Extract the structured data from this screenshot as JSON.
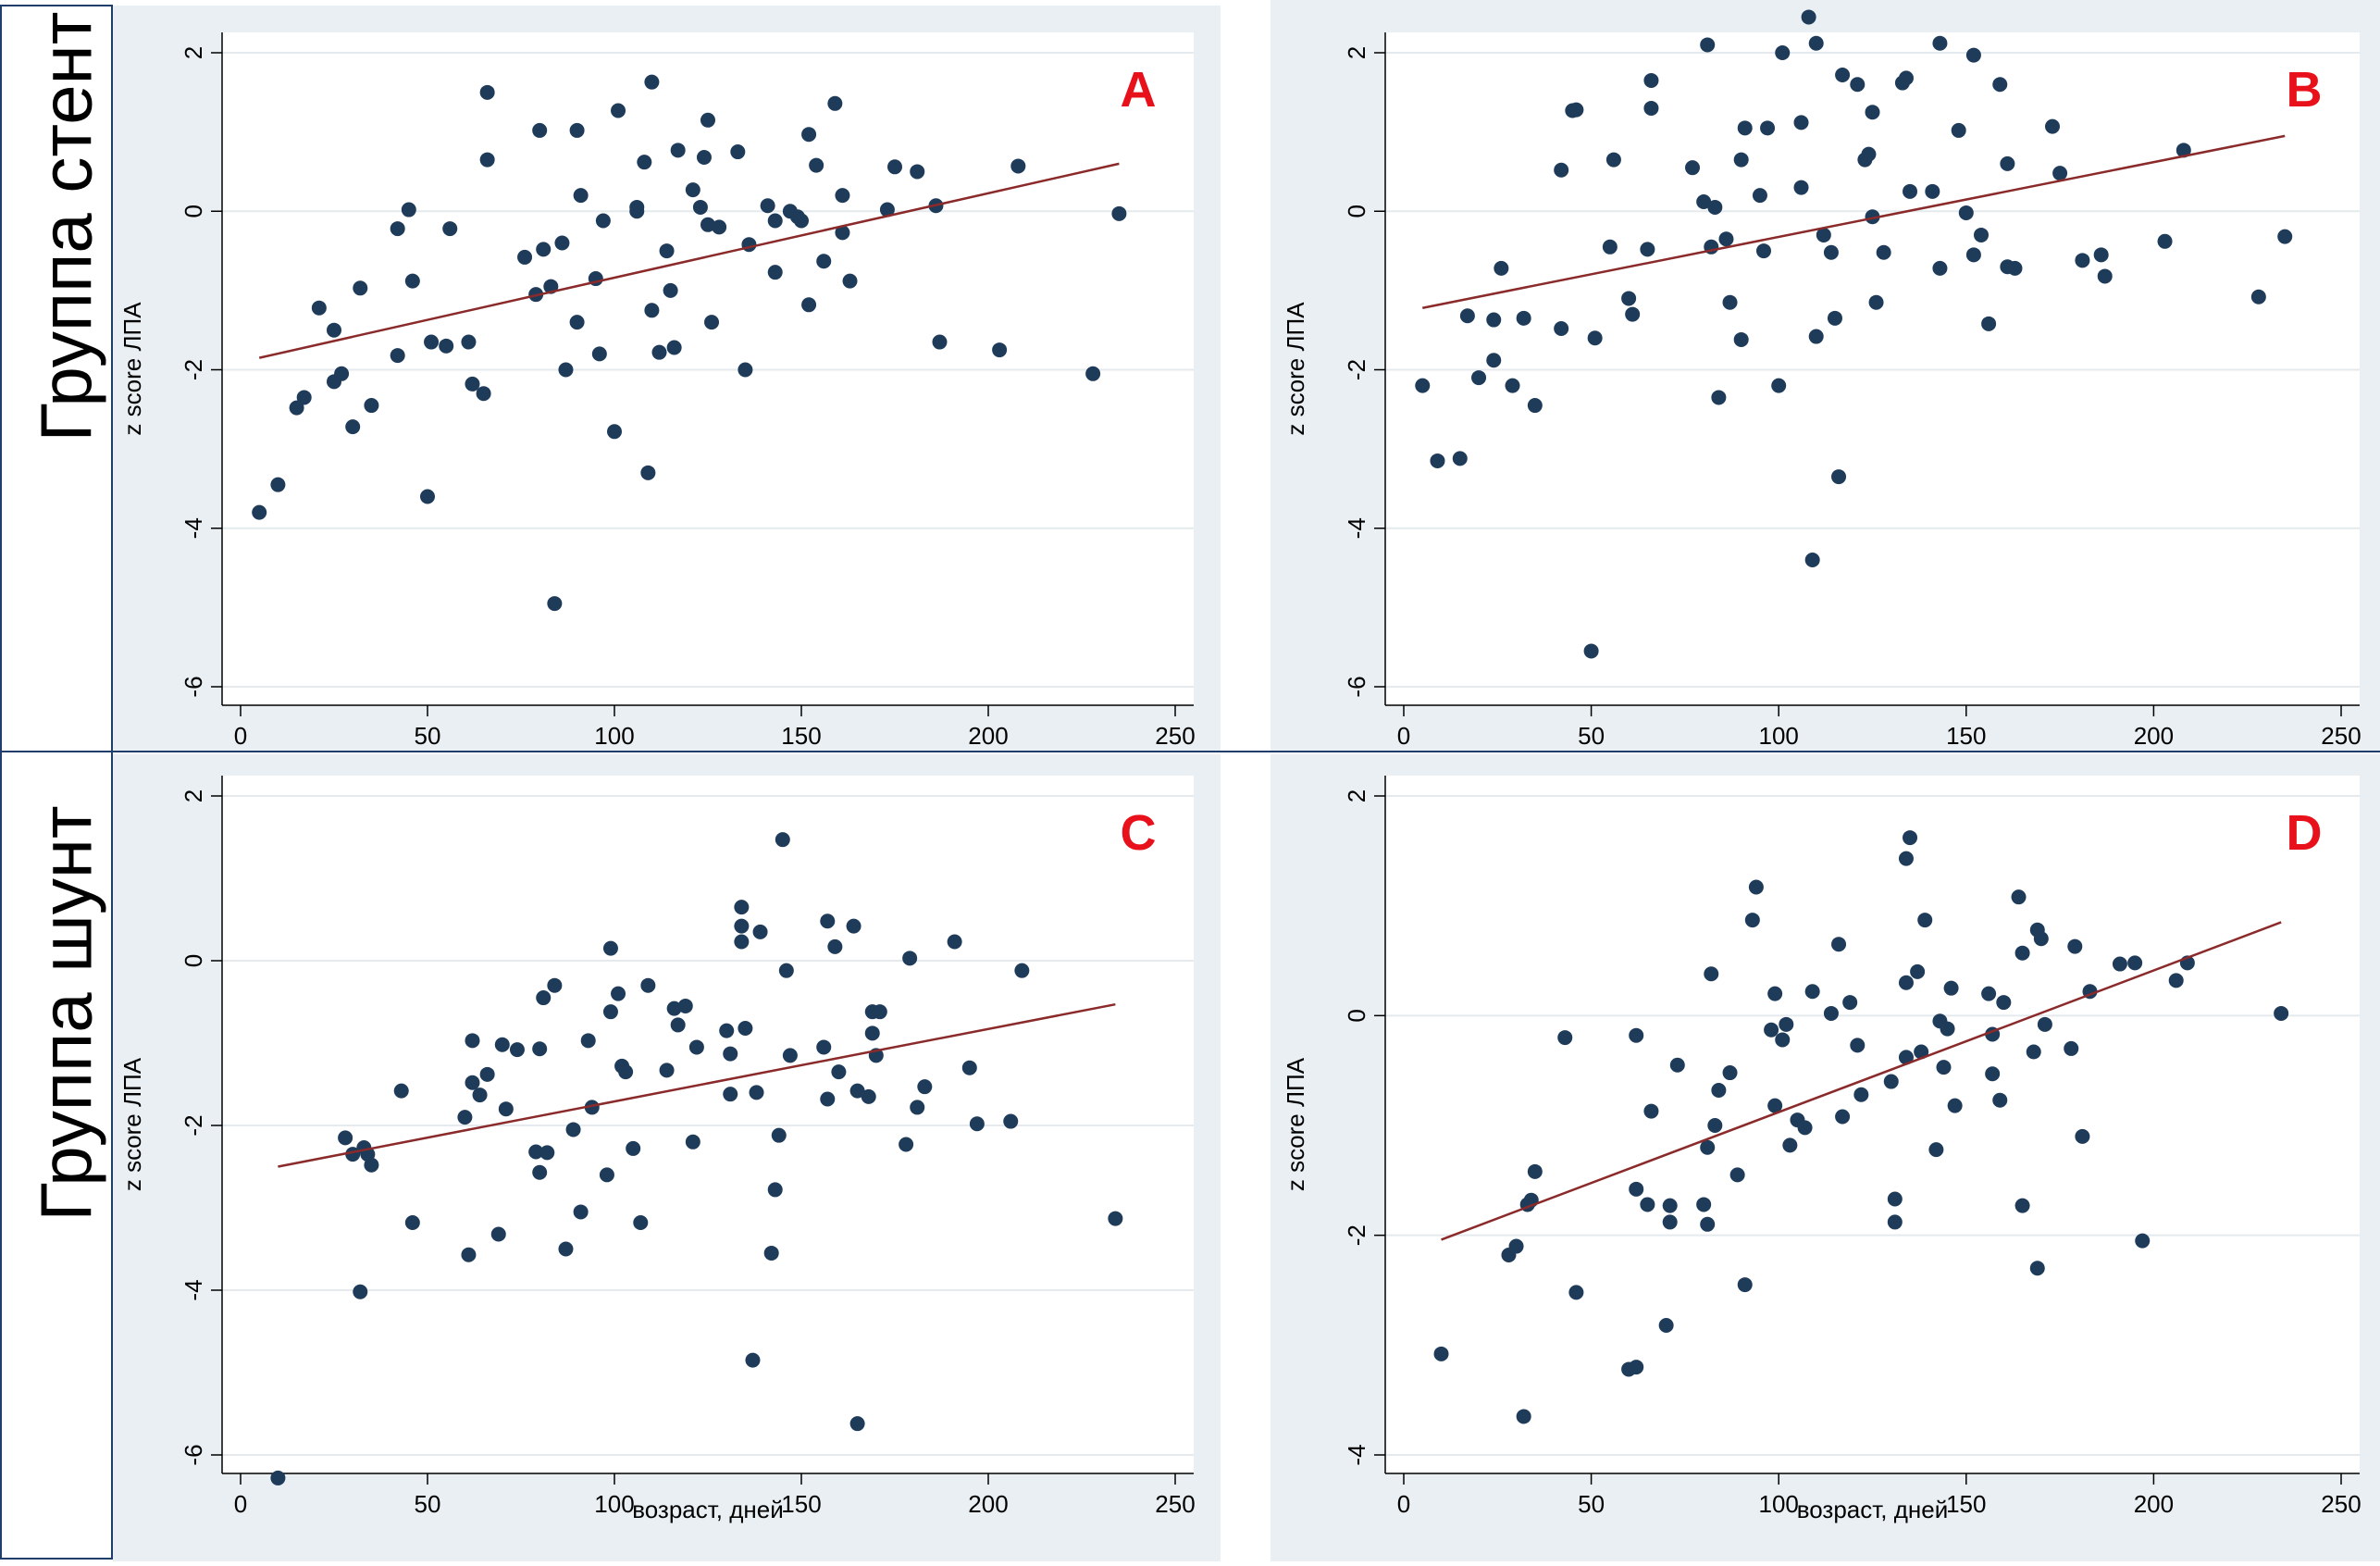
{
  "figure": {
    "row_labels": [
      "Группа стент",
      "Группа шунт"
    ]
  },
  "chart_data": [
    {
      "type": "scatter",
      "panel_letter": "A",
      "xlabel": "",
      "ylabel": "z score ЛПА",
      "xlim": [
        0,
        250
      ],
      "ylim": [
        -6,
        2
      ],
      "xticks": [
        "0",
        "50",
        "100",
        "150",
        "200",
        "250"
      ],
      "yticks": [
        "-6",
        "-4",
        "-2",
        "0",
        "2"
      ],
      "grid": true,
      "fit_line": {
        "x": [
          5,
          235
        ],
        "y": [
          -1.85,
          0.6
        ]
      },
      "points": [
        [
          5,
          -3.8
        ],
        [
          10,
          -3.45
        ],
        [
          15,
          -2.48
        ],
        [
          17,
          -2.35
        ],
        [
          21,
          -1.22
        ],
        [
          25,
          -2.15
        ],
        [
          25,
          -1.5
        ],
        [
          27,
          -2.05
        ],
        [
          30,
          -2.72
        ],
        [
          32,
          -0.97
        ],
        [
          35,
          -2.45
        ],
        [
          42,
          -1.82
        ],
        [
          42,
          -0.22
        ],
        [
          45,
          0.02
        ],
        [
          46,
          -0.88
        ],
        [
          50,
          -3.6
        ],
        [
          51,
          -1.65
        ],
        [
          55,
          -1.7
        ],
        [
          56,
          -0.22
        ],
        [
          61,
          -1.65
        ],
        [
          62,
          -2.18
        ],
        [
          65,
          -2.3
        ],
        [
          66,
          0.65
        ],
        [
          66,
          1.5
        ],
        [
          76,
          -0.58
        ],
        [
          79,
          -1.05
        ],
        [
          80,
          1.02
        ],
        [
          81,
          -0.48
        ],
        [
          83,
          -0.95
        ],
        [
          84,
          -4.95
        ],
        [
          86,
          -0.4
        ],
        [
          87,
          -2.0
        ],
        [
          90,
          -1.4
        ],
        [
          90,
          1.02
        ],
        [
          91,
          0.2
        ],
        [
          95,
          -0.85
        ],
        [
          96,
          -1.8
        ],
        [
          97,
          -0.12
        ],
        [
          100,
          -2.78
        ],
        [
          101,
          1.27
        ],
        [
          106,
          0.05
        ],
        [
          106,
          0.0
        ],
        [
          108,
          0.62
        ],
        [
          109,
          -3.3
        ],
        [
          110,
          1.63
        ],
        [
          110,
          -1.25
        ],
        [
          112,
          -1.78
        ],
        [
          114,
          -0.5
        ],
        [
          115,
          -1.0
        ],
        [
          116,
          -1.72
        ],
        [
          117,
          0.77
        ],
        [
          121,
          0.27
        ],
        [
          123,
          0.05
        ],
        [
          124,
          0.68
        ],
        [
          125,
          1.15
        ],
        [
          125,
          -0.17
        ],
        [
          126,
          -1.4
        ],
        [
          128,
          -0.2
        ],
        [
          133,
          0.75
        ],
        [
          135,
          -2.0
        ],
        [
          136,
          -0.42
        ],
        [
          141,
          0.07
        ],
        [
          143,
          -0.77
        ],
        [
          143,
          -0.12
        ],
        [
          147,
          0.0
        ],
        [
          149,
          -0.07
        ],
        [
          150,
          -0.12
        ],
        [
          152,
          0.97
        ],
        [
          152,
          -1.18
        ],
        [
          154,
          0.58
        ],
        [
          156,
          -0.63
        ],
        [
          159,
          1.36
        ],
        [
          161,
          0.2
        ],
        [
          161,
          -0.27
        ],
        [
          163,
          -0.88
        ],
        [
          173,
          0.02
        ],
        [
          175,
          0.56
        ],
        [
          181,
          0.5
        ],
        [
          186,
          0.07
        ],
        [
          187,
          -1.65
        ],
        [
          203,
          -1.75
        ],
        [
          208,
          0.57
        ],
        [
          228,
          -2.05
        ],
        [
          235,
          -0.03
        ]
      ]
    },
    {
      "type": "scatter",
      "panel_letter": "B",
      "xlabel": "",
      "ylabel": "z score ЛПА",
      "xlim": [
        0,
        250
      ],
      "ylim": [
        -6,
        2
      ],
      "xticks": [
        "0",
        "50",
        "100",
        "150",
        "200",
        "250"
      ],
      "yticks": [
        "-6",
        "-4",
        "-2",
        "0",
        "2"
      ],
      "grid": true,
      "fit_line": {
        "x": [
          5,
          235
        ],
        "y": [
          -1.22,
          0.95
        ]
      },
      "points": [
        [
          5,
          -2.2
        ],
        [
          9,
          -3.15
        ],
        [
          15,
          -3.12
        ],
        [
          17,
          -1.32
        ],
        [
          20,
          -2.1
        ],
        [
          24,
          -1.37
        ],
        [
          24,
          -1.88
        ],
        [
          26,
          -0.72
        ],
        [
          29,
          -2.2
        ],
        [
          32,
          -1.35
        ],
        [
          35,
          -2.45
        ],
        [
          42,
          0.52
        ],
        [
          42,
          -1.48
        ],
        [
          45,
          1.27
        ],
        [
          46,
          1.28
        ],
        [
          50,
          -5.55
        ],
        [
          51,
          -1.6
        ],
        [
          55,
          -0.45
        ],
        [
          56,
          0.65
        ],
        [
          60,
          -1.1
        ],
        [
          61,
          -1.3
        ],
        [
          65,
          -0.48
        ],
        [
          66,
          1.3
        ],
        [
          66,
          1.65
        ],
        [
          77,
          0.55
        ],
        [
          80,
          0.12
        ],
        [
          81,
          2.1
        ],
        [
          82,
          -0.45
        ],
        [
          83,
          0.05
        ],
        [
          84,
          -2.35
        ],
        [
          86,
          -0.35
        ],
        [
          87,
          -1.15
        ],
        [
          90,
          -1.62
        ],
        [
          90,
          0.65
        ],
        [
          91,
          1.05
        ],
        [
          95,
          0.2
        ],
        [
          96,
          -0.5
        ],
        [
          97,
          1.05
        ],
        [
          100,
          -2.2
        ],
        [
          101,
          2.0
        ],
        [
          106,
          1.12
        ],
        [
          106,
          0.3
        ],
        [
          108,
          2.45
        ],
        [
          109,
          -4.4
        ],
        [
          110,
          2.12
        ],
        [
          110,
          -1.58
        ],
        [
          112,
          -0.3
        ],
        [
          114,
          -0.52
        ],
        [
          115,
          -1.35
        ],
        [
          116,
          -3.35
        ],
        [
          117,
          1.72
        ],
        [
          121,
          1.6
        ],
        [
          123,
          0.65
        ],
        [
          124,
          0.72
        ],
        [
          125,
          1.25
        ],
        [
          125,
          -0.07
        ],
        [
          126,
          -1.15
        ],
        [
          128,
          -0.52
        ],
        [
          133,
          1.62
        ],
        [
          134,
          1.68
        ],
        [
          135,
          0.25
        ],
        [
          141,
          0.25
        ],
        [
          143,
          2.12
        ],
        [
          143,
          -0.72
        ],
        [
          148,
          1.02
        ],
        [
          150,
          -0.02
        ],
        [
          152,
          1.97
        ],
        [
          152,
          -0.55
        ],
        [
          154,
          -0.3
        ],
        [
          156,
          -1.42
        ],
        [
          159,
          1.6
        ],
        [
          161,
          0.6
        ],
        [
          161,
          -0.7
        ],
        [
          163,
          -0.72
        ],
        [
          173,
          1.07
        ],
        [
          175,
          0.48
        ],
        [
          181,
          -0.62
        ],
        [
          186,
          -0.55
        ],
        [
          187,
          -0.82
        ],
        [
          203,
          -0.38
        ],
        [
          208,
          0.77
        ],
        [
          228,
          -1.08
        ],
        [
          235,
          -0.32
        ]
      ]
    },
    {
      "type": "scatter",
      "panel_letter": "C",
      "xlabel": "возраст, дней",
      "ylabel": "z score ЛПА",
      "xlim": [
        0,
        250
      ],
      "ylim": [
        -6,
        2
      ],
      "xticks": [
        "0",
        "50",
        "100",
        "150",
        "200",
        "250"
      ],
      "yticks": [
        "-6",
        "-4",
        "-2",
        "0",
        "2"
      ],
      "grid": true,
      "fit_line": {
        "x": [
          10,
          234
        ],
        "y": [
          -2.5,
          -0.53
        ]
      },
      "points": [
        [
          10,
          -6.28
        ],
        [
          28,
          -2.15
        ],
        [
          30,
          -2.35
        ],
        [
          32,
          -4.02
        ],
        [
          33,
          -2.27
        ],
        [
          34,
          -2.35
        ],
        [
          35,
          -2.48
        ],
        [
          43,
          -1.58
        ],
        [
          46,
          -3.18
        ],
        [
          60,
          -1.9
        ],
        [
          61,
          -3.57
        ],
        [
          62,
          -0.97
        ],
        [
          62,
          -1.48
        ],
        [
          64,
          -1.63
        ],
        [
          66,
          -1.38
        ],
        [
          69,
          -3.32
        ],
        [
          70,
          -1.02
        ],
        [
          71,
          -1.8
        ],
        [
          74,
          -1.08
        ],
        [
          79,
          -2.32
        ],
        [
          80,
          -2.57
        ],
        [
          80,
          -1.07
        ],
        [
          81,
          -0.45
        ],
        [
          82,
          -2.33
        ],
        [
          84,
          -0.3
        ],
        [
          87,
          -3.5
        ],
        [
          89,
          -2.05
        ],
        [
          91,
          -3.05
        ],
        [
          93,
          -0.97
        ],
        [
          94,
          -1.78
        ],
        [
          98,
          -2.6
        ],
        [
          99,
          -0.62
        ],
        [
          99,
          0.15
        ],
        [
          101,
          -0.4
        ],
        [
          102,
          -1.28
        ],
        [
          103,
          -1.35
        ],
        [
          105,
          -2.28
        ],
        [
          107,
          -3.18
        ],
        [
          109,
          -0.3
        ],
        [
          114,
          -1.33
        ],
        [
          116,
          -0.58
        ],
        [
          117,
          -0.78
        ],
        [
          119,
          -0.55
        ],
        [
          121,
          -2.2
        ],
        [
          122,
          -1.05
        ],
        [
          130,
          -0.85
        ],
        [
          131,
          -1.13
        ],
        [
          131,
          -1.62
        ],
        [
          134,
          0.65
        ],
        [
          134,
          0.23
        ],
        [
          134,
          0.42
        ],
        [
          135,
          -0.82
        ],
        [
          137,
          -4.85
        ],
        [
          138,
          -1.6
        ],
        [
          139,
          0.35
        ],
        [
          142,
          -3.55
        ],
        [
          143,
          -2.78
        ],
        [
          144,
          -2.12
        ],
        [
          145,
          1.47
        ],
        [
          146,
          -0.12
        ],
        [
          147,
          -1.15
        ],
        [
          156,
          -1.05
        ],
        [
          157,
          -1.68
        ],
        [
          157,
          0.48
        ],
        [
          159,
          0.17
        ],
        [
          160,
          -1.35
        ],
        [
          164,
          0.42
        ],
        [
          165,
          -5.62
        ],
        [
          165,
          -1.58
        ],
        [
          168,
          -1.65
        ],
        [
          169,
          -0.88
        ],
        [
          169,
          -0.62
        ],
        [
          170,
          -1.15
        ],
        [
          171,
          -0.62
        ],
        [
          178,
          -2.23
        ],
        [
          179,
          0.03
        ],
        [
          181,
          -1.78
        ],
        [
          183,
          -1.53
        ],
        [
          191,
          0.23
        ],
        [
          195,
          -1.3
        ],
        [
          197,
          -1.98
        ],
        [
          206,
          -1.95
        ],
        [
          209,
          -0.12
        ],
        [
          234,
          -3.13
        ]
      ]
    },
    {
      "type": "scatter",
      "panel_letter": "D",
      "xlabel": "возраст, дней",
      "ylabel": "z score ЛПА",
      "xlim": [
        0,
        250
      ],
      "ylim": [
        -4,
        2
      ],
      "xticks": [
        "0",
        "50",
        "100",
        "150",
        "200",
        "250"
      ],
      "yticks": [
        "-4",
        "-2",
        "0",
        "2"
      ],
      "grid": true,
      "fit_line": {
        "x": [
          10,
          234
        ],
        "y": [
          -2.04,
          0.85
        ]
      },
      "points": [
        [
          10,
          -3.08
        ],
        [
          28,
          -2.18
        ],
        [
          30,
          -2.1
        ],
        [
          32,
          -3.65
        ],
        [
          33,
          -1.72
        ],
        [
          34,
          -1.68
        ],
        [
          35,
          -1.42
        ],
        [
          43,
          -0.2
        ],
        [
          46,
          -2.52
        ],
        [
          60,
          -3.22
        ],
        [
          62,
          -3.2
        ],
        [
          62,
          -0.18
        ],
        [
          62,
          -1.58
        ],
        [
          65,
          -1.72
        ],
        [
          66,
          -0.87
        ],
        [
          70,
          -2.82
        ],
        [
          71,
          -1.73
        ],
        [
          71,
          -1.88
        ],
        [
          73,
          -0.45
        ],
        [
          80,
          -1.72
        ],
        [
          81,
          -1.2
        ],
        [
          81,
          -1.9
        ],
        [
          82,
          0.38
        ],
        [
          83,
          -1.0
        ],
        [
          84,
          -0.68
        ],
        [
          87,
          -0.52
        ],
        [
          89,
          -1.45
        ],
        [
          91,
          -2.45
        ],
        [
          93,
          0.87
        ],
        [
          94,
          1.17
        ],
        [
          98,
          -0.13
        ],
        [
          99,
          -0.82
        ],
        [
          99,
          0.2
        ],
        [
          101,
          -0.22
        ],
        [
          102,
          -0.08
        ],
        [
          103,
          -1.18
        ],
        [
          105,
          -0.95
        ],
        [
          107,
          -1.02
        ],
        [
          109,
          0.22
        ],
        [
          114,
          0.02
        ],
        [
          116,
          0.65
        ],
        [
          117,
          -0.92
        ],
        [
          119,
          0.12
        ],
        [
          121,
          -0.27
        ],
        [
          122,
          -0.72
        ],
        [
          130,
          -0.6
        ],
        [
          131,
          -1.67
        ],
        [
          131,
          -1.88
        ],
        [
          134,
          0.3
        ],
        [
          134,
          1.43
        ],
        [
          134,
          -0.38
        ],
        [
          135,
          1.62
        ],
        [
          137,
          0.4
        ],
        [
          138,
          -0.33
        ],
        [
          139,
          0.87
        ],
        [
          142,
          -1.22
        ],
        [
          143,
          -0.05
        ],
        [
          144,
          -0.47
        ],
        [
          145,
          -0.12
        ],
        [
          146,
          0.25
        ],
        [
          147,
          -0.82
        ],
        [
          156,
          0.2
        ],
        [
          157,
          -0.53
        ],
        [
          157,
          -0.17
        ],
        [
          159,
          -0.77
        ],
        [
          160,
          0.12
        ],
        [
          164,
          1.08
        ],
        [
          165,
          -1.73
        ],
        [
          165,
          0.57
        ],
        [
          168,
          -0.33
        ],
        [
          169,
          -2.3
        ],
        [
          169,
          0.78
        ],
        [
          170,
          0.7
        ],
        [
          171,
          -0.08
        ],
        [
          178,
          -0.3
        ],
        [
          179,
          0.63
        ],
        [
          181,
          -1.1
        ],
        [
          183,
          0.22
        ],
        [
          191,
          0.47
        ],
        [
          195,
          0.48
        ],
        [
          197,
          -2.05
        ],
        [
          206,
          0.32
        ],
        [
          209,
          0.48
        ],
        [
          234,
          0.02
        ]
      ]
    }
  ]
}
